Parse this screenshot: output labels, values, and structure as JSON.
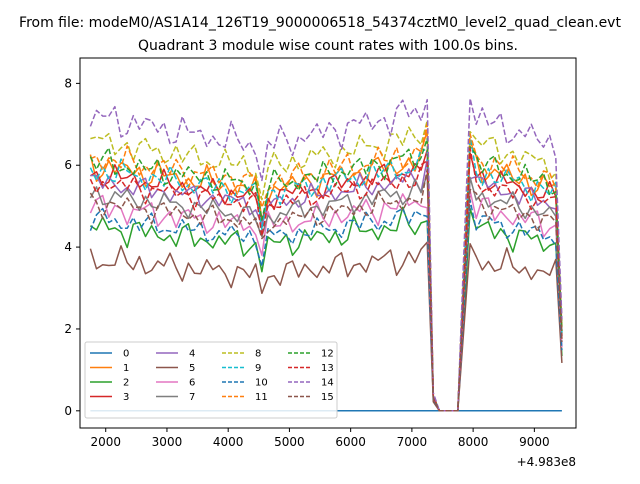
{
  "chart_data": {
    "type": "line",
    "suptitle": "From file: modeM0/AS1A14_126T19_9000006518_54374cztM0_level2_quad_clean.evt",
    "title": "Quadrant 3 module wise count rates with 100.0s bins.",
    "xlabel": "",
    "ylabel": "",
    "x_offset_label": "+4.983e8",
    "xlim": [
      1580,
      9680
    ],
    "ylim": [
      -0.42,
      8.62
    ],
    "x_ticks": [
      2000,
      3000,
      4000,
      5000,
      6000,
      7000,
      8000,
      9000
    ],
    "x_tick_labels": [
      "2000",
      "3000",
      "4000",
      "5000",
      "6000",
      "7000",
      "8000",
      "9000"
    ],
    "y_ticks": [
      0,
      2,
      4,
      6,
      8
    ],
    "y_tick_labels": [
      "0",
      "2",
      "4",
      "6",
      "8"
    ],
    "grid": false,
    "legend_placement": "lower-left",
    "legend_columns": 4,
    "x_start": 1750,
    "x_step": 100,
    "series": [
      {
        "name": "0",
        "color": "#1f77b4",
        "dash": "solid",
        "base": 0.0,
        "amp": 0.0
      },
      {
        "name": "1",
        "color": "#ff7f0e",
        "dash": "solid",
        "base": 6.0,
        "amp": 0.3
      },
      {
        "name": "2",
        "color": "#2ca02c",
        "dash": "solid",
        "base": 4.5,
        "amp": 0.3
      },
      {
        "name": "3",
        "color": "#d62728",
        "dash": "solid",
        "base": 5.8,
        "amp": 0.25
      },
      {
        "name": "4",
        "color": "#9467bd",
        "dash": "solid",
        "base": 5.6,
        "amp": 0.25
      },
      {
        "name": "5",
        "color": "#8c564b",
        "dash": "solid",
        "base": 3.7,
        "amp": 0.3
      },
      {
        "name": "6",
        "color": "#e377c2",
        "dash": "solid",
        "base": 5.0,
        "amp": 0.3
      },
      {
        "name": "7",
        "color": "#7f7f7f",
        "dash": "solid",
        "base": 5.3,
        "amp": 0.25
      },
      {
        "name": "8",
        "color": "#bcbd22",
        "dash": "dashed",
        "base": 6.6,
        "amp": 0.3
      },
      {
        "name": "9",
        "color": "#17becf",
        "dash": "dashed",
        "base": 5.9,
        "amp": 0.3
      },
      {
        "name": "10",
        "color": "#1f77b4",
        "dash": "dashed",
        "base": 4.7,
        "amp": 0.25
      },
      {
        "name": "11",
        "color": "#ff7f0e",
        "dash": "dashed",
        "base": 6.2,
        "amp": 0.3
      },
      {
        "name": "12",
        "color": "#2ca02c",
        "dash": "dashed",
        "base": 6.1,
        "amp": 0.3
      },
      {
        "name": "13",
        "color": "#d62728",
        "dash": "dashed",
        "base": 5.6,
        "amp": 0.25
      },
      {
        "name": "14",
        "color": "#9467bd",
        "dash": "dashed",
        "base": 7.2,
        "amp": 0.35
      },
      {
        "name": "15",
        "color": "#8c564b",
        "dash": "dashed",
        "base": 5.1,
        "amp": 0.25
      }
    ]
  }
}
